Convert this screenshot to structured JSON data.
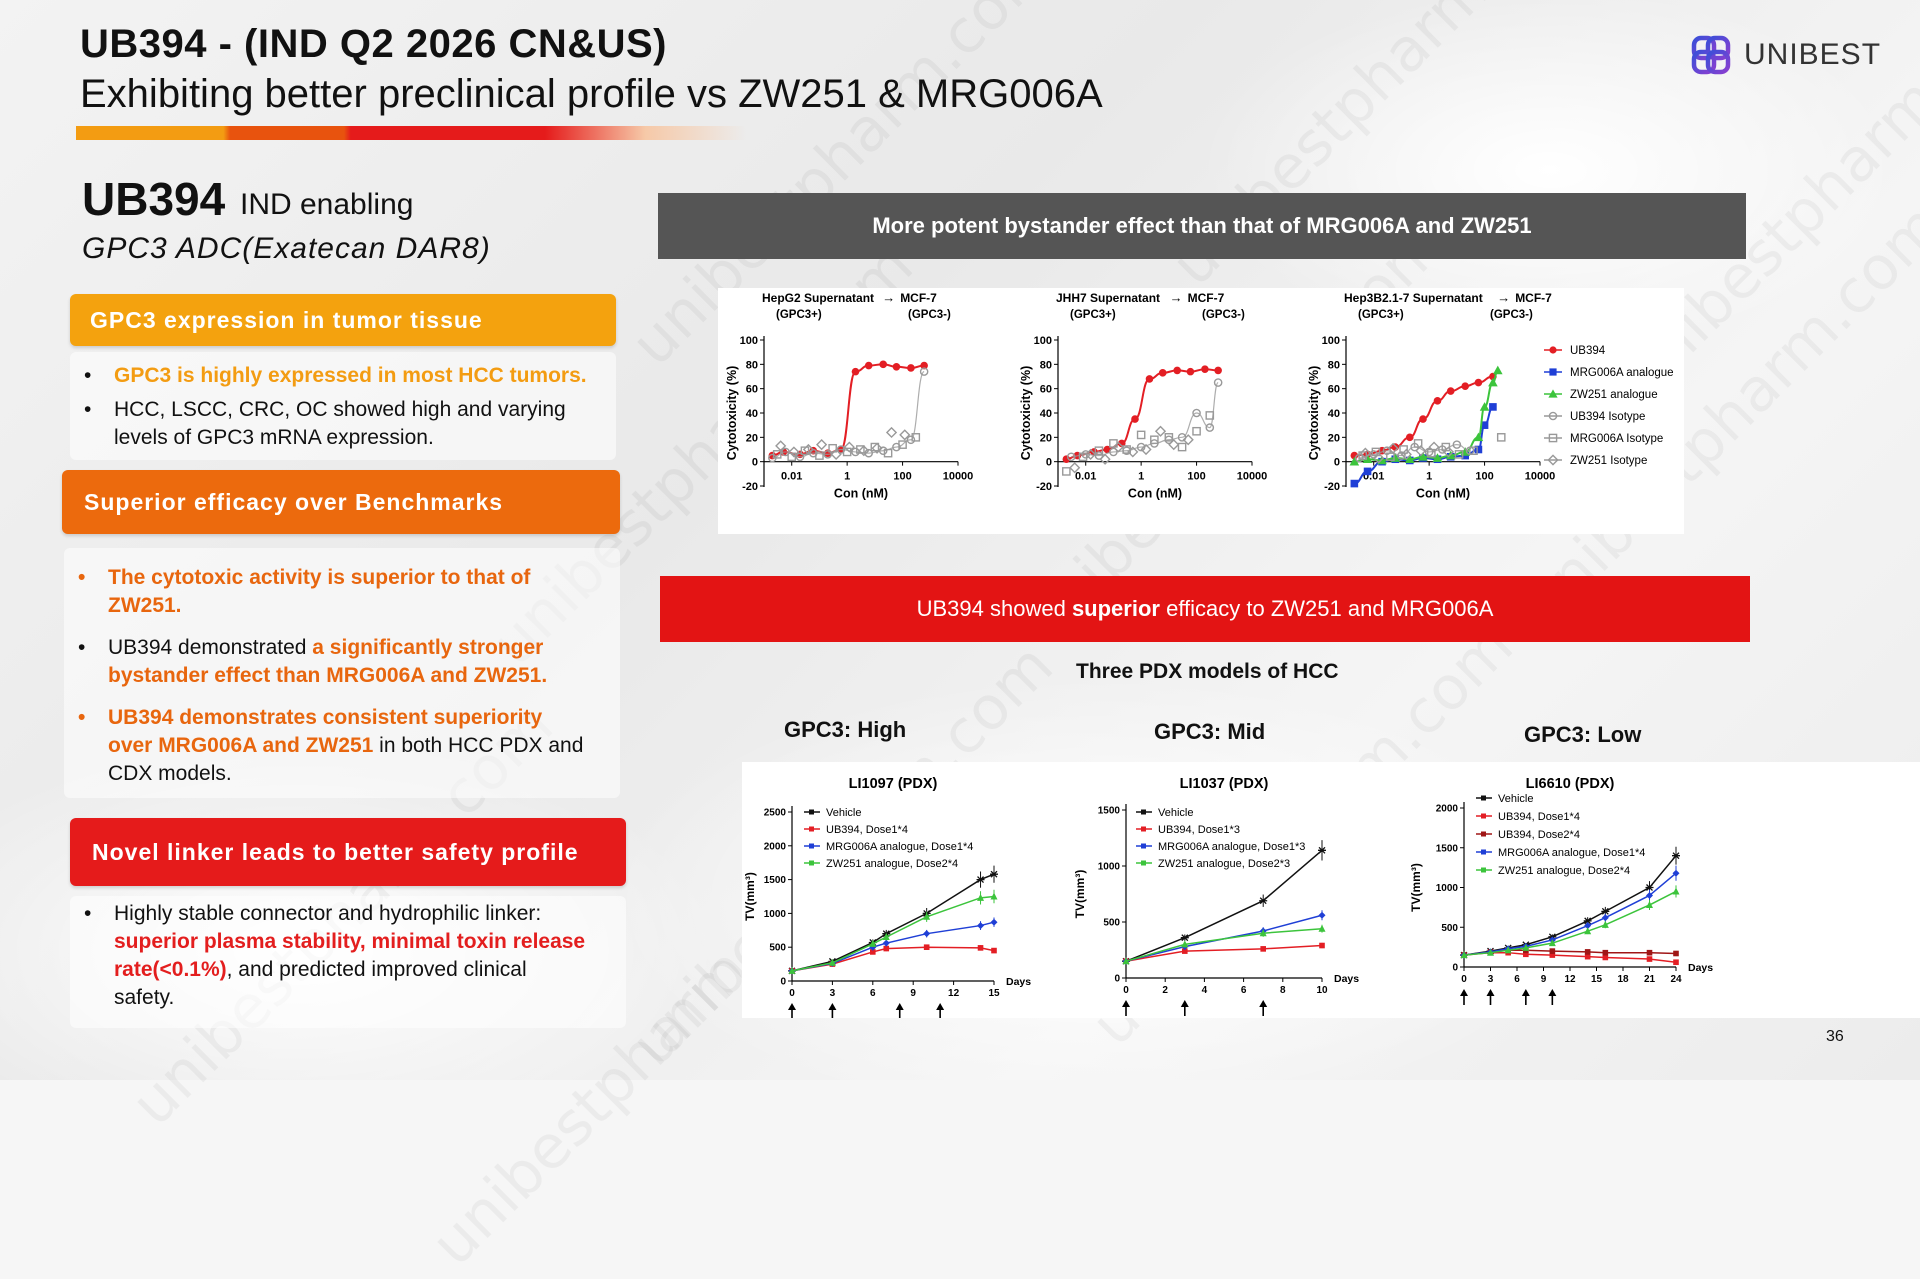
{
  "header": {
    "title_line1": "UB394 -  (IND Q2 2026 CN&US)",
    "title_line2": "Exhibiting better preclinical profile vs ZW251 & MRG006A",
    "logo_text": "UNIBEST",
    "watermark": "unibestpharm.com"
  },
  "product": {
    "name": "UB394",
    "stage": "IND enabling",
    "description": "GPC3 ADC(Exatecan DAR8)"
  },
  "sections": [
    {
      "heading": "GPC3 expression in tumor tissue",
      "color": "#f4a20e",
      "bullets": [
        {
          "parts": [
            {
              "text": "GPC3 is highly expressed in most HCC tumors.",
              "style": "hl"
            }
          ]
        },
        {
          "parts": [
            {
              "text": "HCC, LSCC, CRC, OC showed high and varying levels of GPC3 mRNA expression.",
              "style": ""
            }
          ]
        }
      ]
    },
    {
      "heading": "Superior efficacy over Benchmarks",
      "color": "#ec6a0d",
      "bullets": [
        {
          "bullet_style": "or",
          "parts": [
            {
              "text": "The cytotoxic activity is superior to that of ZW251.",
              "style": "or"
            }
          ]
        },
        {
          "parts": [
            {
              "text": "UB394 demonstrated ",
              "style": ""
            },
            {
              "text": "a significantly stronger bystander effect than MRG006A and ZW251.",
              "style": "or"
            }
          ]
        },
        {
          "bullet_style": "or",
          "parts": [
            {
              "text": "UB394 demonstrates consistent superiority over MRG006A and ZW251",
              "style": "or"
            },
            {
              "text": " in both HCC PDX and CDX models.",
              "style": ""
            }
          ]
        }
      ]
    },
    {
      "heading": "Novel linker leads to better safety profile",
      "color": "#e51b1b",
      "bullets": [
        {
          "parts": [
            {
              "text": "Highly stable connector and hydrophilic linker: ",
              "style": ""
            },
            {
              "text": "superior plasma stability, minimal toxin release rate(<0.1%)",
              "style": "rd"
            },
            {
              "text": ", and predicted improved clinical safety.",
              "style": ""
            }
          ]
        }
      ]
    }
  ],
  "banners": {
    "bystander": "More potent bystander effect than that of MRG006A and ZW251",
    "efficacy_pre": "UB394 showed ",
    "efficacy_bold": "superior",
    "efficacy_post": " efficacy to ZW251 and MRG006A",
    "bystander_color": "#555555",
    "efficacy_color": "#e31414"
  },
  "pdx_section_title": "Three PDX models of HCC",
  "page_number": "36",
  "colors": {
    "ub394": "#e31e24",
    "mrg006a": "#1f3fd6",
    "zw251": "#3cc43c",
    "isotype": "#999999",
    "vehicle": "#111111",
    "dose2": "#a01616"
  },
  "chart_data": [
    {
      "type": "scatter",
      "title_left": "HepG2 Supernatant",
      "title_right": "MCF-7",
      "sub_left": "(GPC3+)",
      "sub_right": "(GPC3-)",
      "xlabel": "Con (nM)",
      "ylabel": "Cytotoxicity (%)",
      "xscale": "log",
      "xticks": [
        "0.01",
        "1",
        "100",
        "10000"
      ],
      "yticks": [
        -20,
        0,
        20,
        40,
        60,
        80,
        100
      ],
      "ylim": [
        -20,
        100
      ],
      "series": [
        {
          "key": "ub394",
          "marker": "circle-filled",
          "x": [
            0.002,
            0.005,
            0.02,
            0.06,
            0.2,
            0.6,
            2,
            6,
            20,
            60,
            200,
            600
          ],
          "y": [
            5,
            8,
            6,
            9,
            7,
            10,
            74,
            79,
            80,
            78,
            77,
            79
          ]
        },
        {
          "key": "ub394_iso",
          "marker": "circle-open",
          "x": [
            0.002,
            0.006,
            0.02,
            0.06,
            0.2,
            0.6,
            2,
            6,
            20,
            60,
            200,
            600
          ],
          "y": [
            3,
            8,
            4,
            7,
            6,
            10,
            8,
            7,
            9,
            12,
            18,
            74
          ]
        },
        {
          "key": "mrg_iso",
          "marker": "square-open",
          "x": [
            0.003,
            0.01,
            0.03,
            0.1,
            0.3,
            1,
            3,
            10,
            30,
            100,
            300
          ],
          "y": [
            6,
            4,
            9,
            5,
            11,
            8,
            10,
            12,
            7,
            14,
            20
          ]
        },
        {
          "key": "zw_iso",
          "marker": "diamond-open",
          "x": [
            0.004,
            0.012,
            0.04,
            0.12,
            0.4,
            1.2,
            4,
            12,
            40,
            120
          ],
          "y": [
            13,
            8,
            10,
            14,
            6,
            12,
            9,
            11,
            24,
            22
          ]
        }
      ]
    },
    {
      "type": "scatter",
      "title_left": "JHH7 Supernatant",
      "title_right": "MCF-7",
      "sub_left": "(GPC3+)",
      "sub_right": "(GPC3-)",
      "xlabel": "Con (nM)",
      "ylabel": "Cytotoxicity (%)",
      "xscale": "log",
      "xticks": [
        "0.01",
        "1",
        "100",
        "10000"
      ],
      "yticks": [
        -20,
        0,
        20,
        40,
        60,
        80,
        100
      ],
      "ylim": [
        -20,
        100
      ],
      "series": [
        {
          "key": "ub394",
          "marker": "circle-filled",
          "x": [
            0.002,
            0.005,
            0.02,
            0.06,
            0.2,
            0.6,
            2,
            6,
            20,
            60,
            200,
            600
          ],
          "y": [
            2,
            5,
            8,
            10,
            15,
            35,
            68,
            73,
            75,
            74,
            76,
            75
          ]
        },
        {
          "key": "ub394_iso",
          "marker": "circle-open",
          "x": [
            0.003,
            0.01,
            0.03,
            0.1,
            0.3,
            1,
            3,
            10,
            30,
            100,
            300,
            600
          ],
          "y": [
            4,
            6,
            5,
            8,
            9,
            12,
            15,
            18,
            20,
            40,
            28,
            65
          ]
        },
        {
          "key": "mrg_iso",
          "marker": "square-open",
          "x": [
            0.002,
            0.008,
            0.03,
            0.1,
            0.3,
            1,
            3,
            10,
            30,
            100,
            300
          ],
          "y": [
            -8,
            4,
            9,
            15,
            10,
            22,
            18,
            20,
            12,
            25,
            38
          ]
        },
        {
          "key": "zw_iso",
          "marker": "diamond-open",
          "x": [
            0.004,
            0.015,
            0.05,
            0.15,
            0.5,
            1.5,
            5,
            15,
            50
          ],
          "y": [
            -5,
            6,
            2,
            12,
            8,
            10,
            25,
            14,
            18
          ]
        }
      ]
    },
    {
      "type": "scatter",
      "title_left": "Hep3B2.1-7 Supernatant",
      "title_right": "MCF-7",
      "sub_left": "(GPC3+)",
      "sub_right": "(GPC3-)",
      "xlabel": "Con (nM)",
      "ylabel": "Cytotoxicity (%)",
      "xscale": "log",
      "xticks": [
        "0.01",
        "1",
        "100",
        "10000"
      ],
      "yticks": [
        -20,
        0,
        20,
        40,
        60,
        80,
        100
      ],
      "ylim": [
        -20,
        100
      ],
      "legend": [
        "UB394",
        "MRG006A analogue",
        "ZW251 analogue",
        "UB394 Isotype",
        "MRG006A Isotype",
        "ZW251 Isotype"
      ],
      "series": [
        {
          "key": "ub394",
          "marker": "circle-filled",
          "x": [
            0.002,
            0.006,
            0.02,
            0.06,
            0.2,
            0.6,
            2,
            6,
            20,
            60,
            200
          ],
          "y": [
            5,
            6,
            9,
            12,
            20,
            35,
            50,
            58,
            62,
            65,
            70
          ]
        },
        {
          "key": "mrg006a",
          "marker": "square-filled",
          "x": [
            0.002,
            0.006,
            0.02,
            0.06,
            0.2,
            0.6,
            2,
            6,
            20,
            60,
            100,
            200
          ],
          "y": [
            -18,
            -8,
            0,
            2,
            1,
            3,
            2,
            4,
            5,
            10,
            30,
            45
          ]
        },
        {
          "key": "zw251",
          "marker": "triangle-filled",
          "x": [
            0.002,
            0.006,
            0.02,
            0.06,
            0.2,
            0.6,
            2,
            6,
            20,
            60,
            100,
            200,
            300
          ],
          "y": [
            0,
            2,
            1,
            3,
            2,
            4,
            3,
            5,
            8,
            20,
            45,
            65,
            75
          ]
        },
        {
          "key": "ub394_iso",
          "marker": "circle-open",
          "x": [
            0.003,
            0.01,
            0.03,
            0.1,
            0.3,
            1,
            3,
            10,
            30
          ],
          "y": [
            3,
            6,
            9,
            5,
            12,
            8,
            10,
            14,
            9
          ]
        },
        {
          "key": "mrg_iso",
          "marker": "square-open",
          "x": [
            0.004,
            0.012,
            0.04,
            0.12,
            0.4,
            1.2,
            4,
            12,
            40,
            400
          ],
          "y": [
            5,
            8,
            4,
            10,
            15,
            7,
            12,
            6,
            9,
            20
          ]
        },
        {
          "key": "zw_iso",
          "marker": "diamond-open",
          "x": [
            0.005,
            0.015,
            0.05,
            0.15,
            0.5,
            1.5,
            5
          ],
          "y": [
            7,
            3,
            11,
            6,
            9,
            12,
            8
          ]
        }
      ]
    },
    {
      "type": "line",
      "category_label": "GPC3: High",
      "title": "LI1097 (PDX)",
      "xlabel": "Days",
      "ylabel": "TV(mm³)",
      "xticks": [
        0,
        3,
        6,
        9,
        12,
        15
      ],
      "yticks": [
        0,
        500,
        1000,
        1500,
        2000,
        2500
      ],
      "xlim": [
        0,
        15
      ],
      "ylim": [
        0,
        2500
      ],
      "dose_days": [
        0,
        3,
        8,
        11
      ],
      "series": [
        {
          "name": "Vehicle",
          "key": "vehicle",
          "x": [
            0,
            3,
            6,
            7,
            10,
            14,
            15
          ],
          "y": [
            150,
            290,
            570,
            700,
            1000,
            1500,
            1580
          ]
        },
        {
          "name": "UB394, Dose1*4",
          "key": "ub394",
          "x": [
            0,
            3,
            6,
            7,
            10,
            14,
            15
          ],
          "y": [
            150,
            250,
            430,
            480,
            500,
            490,
            450
          ]
        },
        {
          "name": "MRG006A analogue, Dose1*4",
          "key": "mrg006a",
          "x": [
            0,
            3,
            6,
            7,
            10,
            14,
            15
          ],
          "y": [
            150,
            260,
            500,
            560,
            700,
            820,
            870
          ]
        },
        {
          "name": "ZW251 analogue, Dose2*4",
          "key": "zw251",
          "x": [
            0,
            3,
            6,
            7,
            10,
            14,
            15
          ],
          "y": [
            150,
            270,
            550,
            650,
            950,
            1230,
            1250
          ]
        }
      ]
    },
    {
      "type": "line",
      "category_label": "GPC3: Mid",
      "title": "LI1037 (PDX)",
      "xlabel": "Days",
      "ylabel": "TV(mm³)",
      "xticks": [
        0,
        2,
        4,
        6,
        8,
        10
      ],
      "yticks": [
        0,
        500,
        1000,
        1500
      ],
      "xlim": [
        0,
        10
      ],
      "ylim": [
        0,
        1500
      ],
      "dose_days": [
        0,
        3,
        7
      ],
      "series": [
        {
          "name": "Vehicle",
          "key": "vehicle",
          "x": [
            0,
            3,
            7,
            10
          ],
          "y": [
            150,
            360,
            690,
            1140
          ]
        },
        {
          "name": "UB394, Dose1*3",
          "key": "ub394",
          "x": [
            0,
            3,
            7,
            10
          ],
          "y": [
            150,
            240,
            260,
            290
          ]
        },
        {
          "name": "MRG006A analogue, Dose1*3",
          "key": "mrg006a",
          "x": [
            0,
            3,
            7,
            10
          ],
          "y": [
            150,
            280,
            420,
            560
          ]
        },
        {
          "name": "ZW251 analogue, Dose2*3",
          "key": "zw251",
          "x": [
            0,
            3,
            7,
            10
          ],
          "y": [
            150,
            300,
            400,
            440
          ]
        }
      ]
    },
    {
      "type": "line",
      "category_label": "GPC3: Low",
      "title": "LI6610 (PDX)",
      "xlabel": "Days",
      "ylabel": "TV(mm³)",
      "xticks": [
        0,
        3,
        6,
        9,
        12,
        15,
        18,
        21,
        24
      ],
      "yticks": [
        0,
        500,
        1000,
        1500,
        2000
      ],
      "xlim": [
        0,
        24
      ],
      "ylim": [
        0,
        2000
      ],
      "dose_days": [
        0,
        3,
        7,
        10
      ],
      "series": [
        {
          "name": "Vehicle",
          "key": "vehicle",
          "x": [
            0,
            3,
            5,
            7,
            10,
            14,
            16,
            21,
            24
          ],
          "y": [
            150,
            200,
            240,
            280,
            380,
            580,
            700,
            1000,
            1400
          ]
        },
        {
          "name": "UB394, Dose1*4",
          "key": "ub394",
          "x": [
            0,
            3,
            5,
            7,
            10,
            14,
            16,
            21,
            24
          ],
          "y": [
            150,
            180,
            180,
            160,
            150,
            130,
            120,
            100,
            60
          ]
        },
        {
          "name": "UB394, Dose2*4",
          "key": "dose2",
          "x": [
            0,
            3,
            5,
            7,
            10,
            14,
            16,
            21,
            24
          ],
          "y": [
            150,
            190,
            210,
            210,
            200,
            190,
            180,
            180,
            170
          ]
        },
        {
          "name": "MRG006A analogue, Dose1*4",
          "key": "mrg006a",
          "x": [
            0,
            3,
            5,
            7,
            10,
            14,
            16,
            21,
            24
          ],
          "y": [
            150,
            190,
            230,
            260,
            340,
            520,
            620,
            900,
            1180
          ]
        },
        {
          "name": "ZW251 analogue, Dose2*4",
          "key": "zw251",
          "x": [
            0,
            3,
            5,
            7,
            10,
            14,
            16,
            21,
            24
          ],
          "y": [
            150,
            180,
            210,
            240,
            300,
            450,
            530,
            780,
            950
          ]
        }
      ]
    }
  ]
}
